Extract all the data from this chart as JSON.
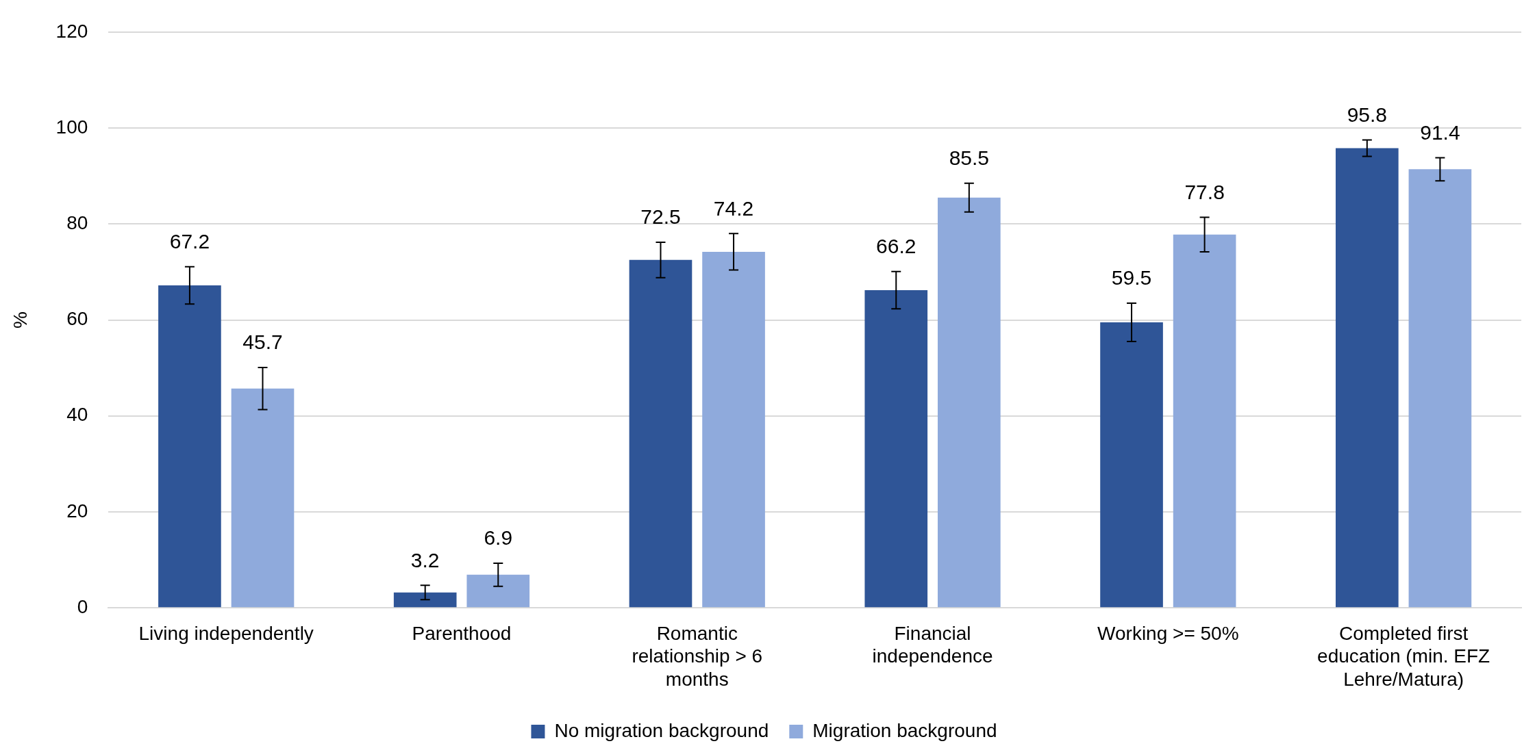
{
  "chart_data": {
    "type": "bar",
    "ylabel": "%",
    "categories": [
      "Living independently",
      "Parenthood",
      "Romantic relationship > 6 months",
      "Financial independence",
      "Working >= 50%",
      "Completed first education (min. EFZ Lehre/Matura)"
    ],
    "series": [
      {
        "name": "No migration background",
        "color": "#2f5597",
        "values": [
          67.2,
          3.2,
          72.5,
          66.2,
          59.5,
          95.8
        ],
        "errors": [
          3.9,
          1.5,
          3.7,
          3.9,
          4.0,
          1.7
        ]
      },
      {
        "name": "Migration background",
        "color": "#8faadc",
        "values": [
          45.7,
          6.9,
          74.2,
          85.5,
          77.8,
          91.4
        ],
        "errors": [
          4.4,
          2.4,
          3.8,
          3.0,
          3.6,
          2.4
        ]
      }
    ],
    "ylim": [
      0,
      120
    ],
    "yticks": [
      0,
      20,
      40,
      60,
      80,
      100,
      120
    ],
    "grid": "y",
    "legend": "bottom",
    "data_labels": true
  }
}
